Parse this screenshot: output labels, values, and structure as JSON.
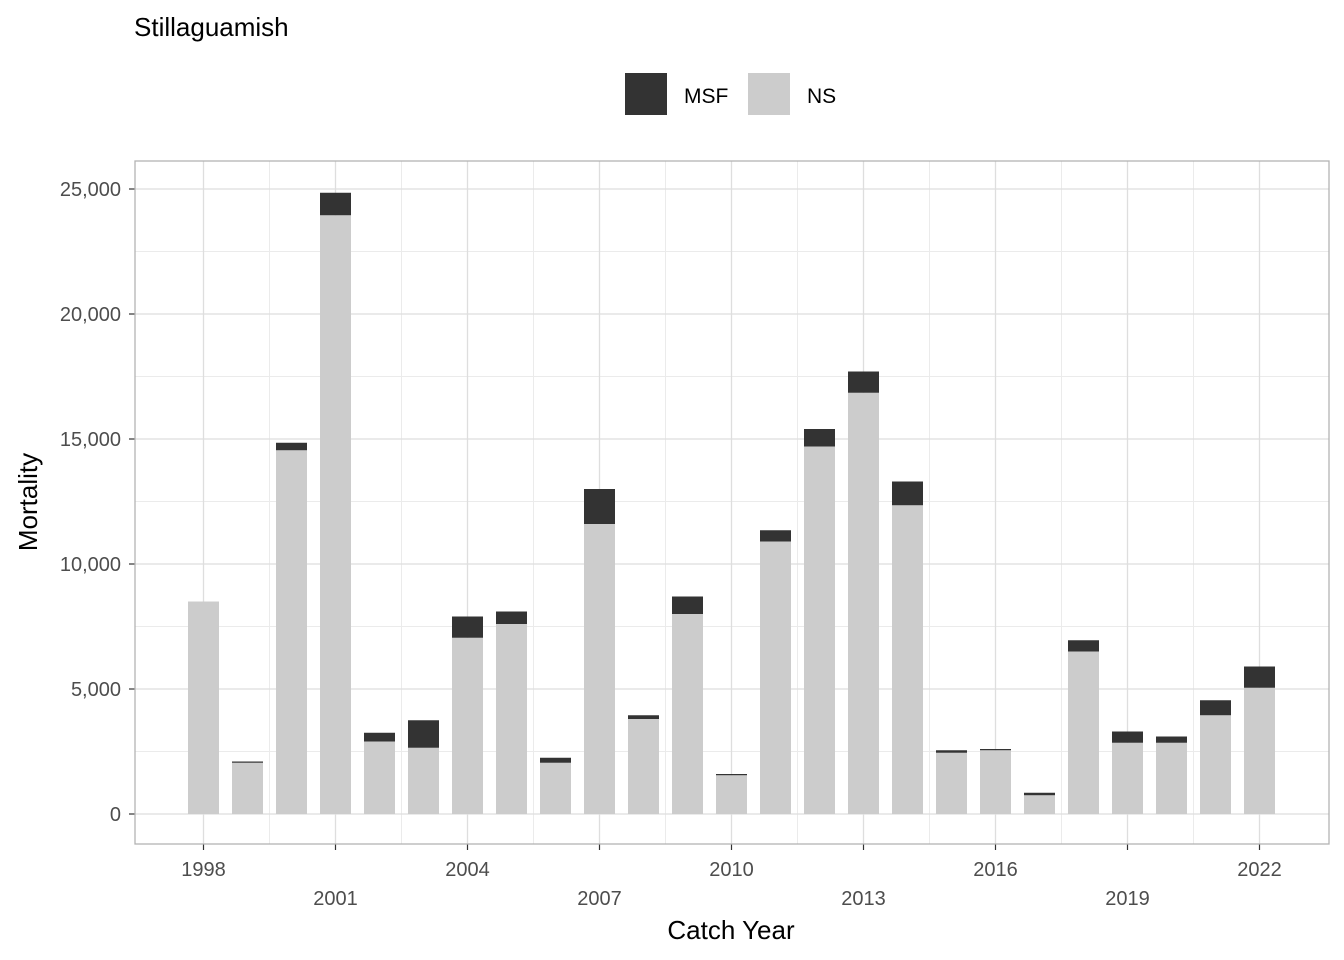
{
  "chart_data": {
    "type": "bar",
    "stacked": true,
    "title": "Stillaguamish",
    "xlabel": "Catch Year",
    "ylabel": "Mortality",
    "x": [
      1998,
      1999,
      2000,
      2001,
      2002,
      2003,
      2004,
      2005,
      2006,
      2007,
      2008,
      2009,
      2010,
      2011,
      2012,
      2013,
      2014,
      2015,
      2016,
      2017,
      2018,
      2019,
      2020,
      2021,
      2022
    ],
    "x_tick_labels": [
      "1998",
      "2001",
      "2004",
      "2007",
      "2010",
      "2013",
      "2016",
      "2019",
      "2022"
    ],
    "x_tick_values": [
      1998,
      2001,
      2004,
      2007,
      2010,
      2013,
      2016,
      2019,
      2022
    ],
    "y_ticks": [
      0,
      5000,
      10000,
      15000,
      20000,
      25000
    ],
    "y_tick_labels": [
      "0",
      "5,000",
      "10,000",
      "15,000",
      "20,000",
      "25,000"
    ],
    "ylim": [
      -1150,
      26100
    ],
    "xlim": [
      1996.4,
      2023.6
    ],
    "grid": true,
    "legend_position": "top",
    "series": [
      {
        "name": "NS",
        "color": "#cccccc",
        "values": [
          8500,
          2050,
          14550,
          23950,
          2900,
          2650,
          7050,
          7600,
          2050,
          11600,
          3800,
          8000,
          1550,
          10900,
          14700,
          16850,
          12350,
          2450,
          2550,
          750,
          6500,
          2850,
          2850,
          3950,
          5050
        ]
      },
      {
        "name": "MSF",
        "color": "#333333",
        "values": [
          0,
          50,
          300,
          900,
          350,
          1100,
          850,
          500,
          200,
          1400,
          150,
          700,
          50,
          450,
          700,
          850,
          950,
          100,
          50,
          100,
          450,
          450,
          250,
          600,
          850
        ]
      }
    ],
    "legend": [
      {
        "name": "MSF",
        "color": "#333333"
      },
      {
        "name": "NS",
        "color": "#cccccc"
      }
    ]
  }
}
